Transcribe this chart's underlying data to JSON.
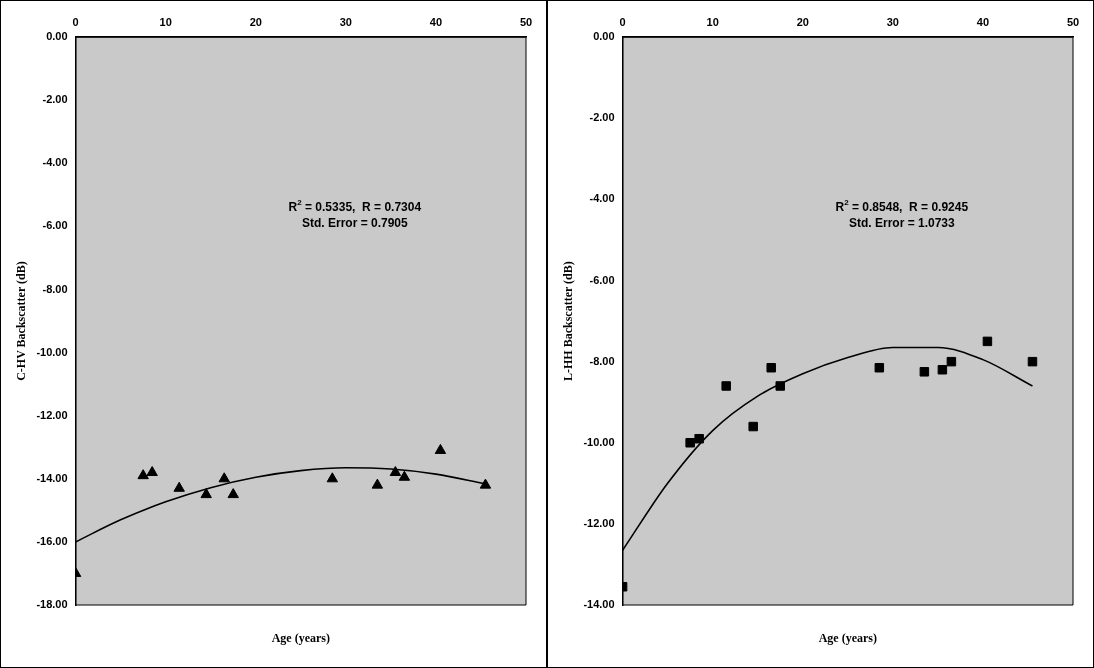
{
  "chart_data": [
    {
      "type": "scatter",
      "xlabel": "Age (years)",
      "ylabel": "C-HV Backscatter (dB)",
      "xlim": [
        0,
        50
      ],
      "xticks": [
        0,
        10,
        20,
        30,
        40,
        50
      ],
      "ylim": [
        -18,
        0
      ],
      "yticks": [
        {
          "value": 0,
          "label": "0.00"
        },
        {
          "value": -2,
          "label": "-2.00"
        },
        {
          "value": -4,
          "label": "-4.00"
        },
        {
          "value": -6,
          "label": "-6.00"
        },
        {
          "value": -8,
          "label": "-8.00"
        },
        {
          "value": -10,
          "label": "-10.00"
        },
        {
          "value": -12,
          "label": "-12.00"
        },
        {
          "value": -14,
          "label": "-14.00"
        },
        {
          "value": -16,
          "label": "-16.00"
        },
        {
          "value": -18,
          "label": "-18.00"
        }
      ],
      "grid": false,
      "legend": false,
      "marker": "triangle",
      "annotations": [
        "R$^{2}$ = 0.5335,  R = 0.7304",
        "Std. Error = 0.7905"
      ],
      "series": [
        {
          "color": "#000000",
          "x": [
            0,
            7.5,
            8.5,
            11.5,
            14.5,
            16.5,
            17.5,
            28.5,
            33.5,
            35.5,
            36.5,
            40.5,
            45.5
          ],
          "values": [
            -17,
            -13.9,
            -13.8,
            -14.3,
            -14.5,
            -14,
            -14.5,
            -14,
            -14.2,
            -13.8,
            -13.95,
            -13.1,
            -14.2
          ]
        },
        {
          "type": "line",
          "color": "#000000",
          "marker": "none",
          "x": [
            0,
            5,
            10,
            15,
            20,
            25,
            30,
            35,
            40,
            45.5
          ],
          "values": [
            -16,
            -15.3,
            -14.73,
            -14.28,
            -13.95,
            -13.74,
            -13.65,
            -13.69,
            -13.85,
            -14.16
          ]
        }
      ]
    },
    {
      "type": "scatter",
      "xlabel": "Age (years)",
      "ylabel": "L-HH Backscatter (dB)",
      "xlim": [
        0,
        50
      ],
      "xticks": [
        0,
        10,
        20,
        30,
        40,
        50
      ],
      "ylim": [
        -14,
        0
      ],
      "yticks": [
        {
          "value": 0,
          "label": "0.00"
        },
        {
          "value": -2,
          "label": "-2.00"
        },
        {
          "value": -4,
          "label": "-4.00"
        },
        {
          "value": -6,
          "label": "-6.00"
        },
        {
          "value": -8,
          "label": "-8.00"
        },
        {
          "value": -10,
          "label": "-10.00"
        },
        {
          "value": -12,
          "label": "-12.00"
        },
        {
          "value": -14,
          "label": "-14.00"
        }
      ],
      "grid": false,
      "legend": false,
      "marker": "square",
      "annotations": [
        "R$^{2}$ = 0.8548,  R = 0.9245",
        "Std. Error = 1.0733"
      ],
      "series": [
        {
          "color": "#000000",
          "x": [
            0,
            7.5,
            8.5,
            11.5,
            14.5,
            16.5,
            17.5,
            28.5,
            33.5,
            35.5,
            36.5,
            40.5,
            45.5
          ],
          "values": [
            -13.55,
            -10,
            -9.9,
            -8.6,
            -9.6,
            -8.15,
            -8.6,
            -8.15,
            -8.25,
            -8.2,
            -8,
            -7.5,
            -8
          ]
        },
        {
          "type": "line",
          "color": "#000000",
          "marker": "none",
          "x": [
            0,
            5,
            10,
            15,
            20,
            25,
            30,
            35,
            40,
            45.5
          ],
          "values": [
            -12.65,
            -11,
            -9.7,
            -8.85,
            -8.3,
            -7.9,
            -7.65,
            -7.65,
            -7.95,
            -8.6
          ]
        }
      ]
    }
  ]
}
